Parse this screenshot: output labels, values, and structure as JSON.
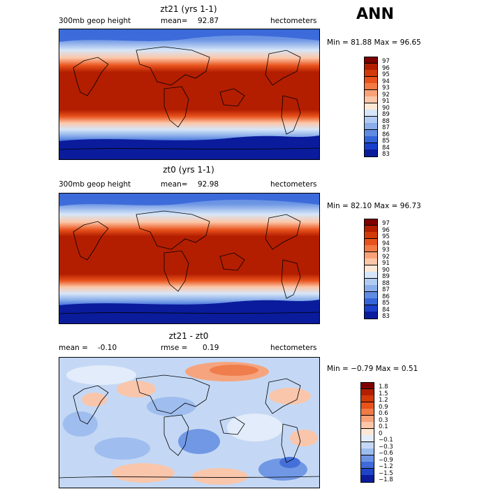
{
  "season": "ANN",
  "panels": [
    {
      "title": "zt21 (yrs 1-1)",
      "left_label": "300mb geop height",
      "mean_label": "mean=",
      "mean_value": "92.87",
      "units": "hectometers",
      "minmax": "Min =   81.88 Max =   96.65",
      "colorbar_ticks": [
        "97",
        "96",
        "95",
        "94",
        "93",
        "92",
        "91",
        "90",
        "89",
        "88",
        "87",
        "86",
        "85",
        "84",
        "83"
      ],
      "colorbar_colors": [
        "#7e0000",
        "#b31e00",
        "#d23a0a",
        "#e8521c",
        "#f27a44",
        "#f9a278",
        "#fcc6a8",
        "#fde8d6",
        "#d6e6f8",
        "#b2ccf1",
        "#8aaeea",
        "#5f8be2",
        "#3564d8",
        "#1a3fcb",
        "#0a1c9c"
      ]
    },
    {
      "title": "zt0 (yrs 1-1)",
      "left_label": "300mb geop height",
      "mean_label": "mean=",
      "mean_value": "92.98",
      "units": "hectometers",
      "minmax": "Min =   82.10 Max =   96.73",
      "colorbar_ticks": [
        "97",
        "96",
        "95",
        "94",
        "93",
        "92",
        "91",
        "90",
        "89",
        "88",
        "87",
        "86",
        "85",
        "84",
        "83"
      ],
      "colorbar_colors": [
        "#7e0000",
        "#b31e00",
        "#d23a0a",
        "#e8521c",
        "#f27a44",
        "#f9a278",
        "#fcc6a8",
        "#fde8d6",
        "#d6e6f8",
        "#b2ccf1",
        "#8aaeea",
        "#5f8be2",
        "#3564d8",
        "#1a3fcb",
        "#0a1c9c"
      ]
    },
    {
      "title": "zt21 - zt0",
      "left_label": "mean =",
      "mean_label": "rmse =",
      "left_value": "-0.10",
      "mean_value": "0.19",
      "units": "hectometers",
      "minmax": "Min =  −0.79 Max =    0.51",
      "colorbar_ticks": [
        "1.8",
        "1.5",
        "1.2",
        "0.9",
        "0.6",
        "0.3",
        "0.1",
        "0",
        "−0.1",
        "−0.3",
        "−0.6",
        "−0.9",
        "−1.2",
        "−1.5",
        "−1.8"
      ],
      "colorbar_colors": [
        "#7e0000",
        "#b31e00",
        "#d23a0a",
        "#e8521c",
        "#f27a44",
        "#f9a278",
        "#fcc6a8",
        "#fde8d6",
        "#e4eefb",
        "#c4d8f5",
        "#9ebcee",
        "#6d95e4",
        "#3f6ad8",
        "#1f44c8",
        "#0a1c9c"
      ]
    }
  ]
}
